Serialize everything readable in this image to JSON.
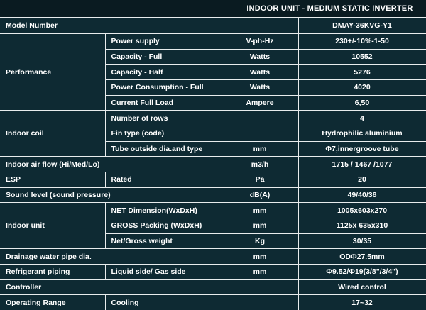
{
  "colors": {
    "background": "#0e2a33",
    "header_background": "#0a1b21",
    "border": "#e8eced",
    "text": "#ffffff"
  },
  "table": {
    "title": "INDOOR UNIT - MEDIUM STATIC INVERTER",
    "rows": {
      "model": {
        "label": "Model Number",
        "value": "DMAY-36KVG-Y1"
      },
      "performance": {
        "label": "Performance",
        "items": [
          {
            "spec": "Power supply",
            "unit": "V-ph-Hz",
            "value": "230+/-10%-1-50"
          },
          {
            "spec": "Capacity - Full",
            "unit": "Watts",
            "value": "10552"
          },
          {
            "spec": "Capacity - Half",
            "unit": "Watts",
            "value": "5276"
          },
          {
            "spec": "Power Consumption - Full",
            "unit": "Watts",
            "value": "4020"
          },
          {
            "spec": "Current Full Load",
            "unit": "Ampere",
            "value": "6,50"
          }
        ]
      },
      "indoor_coil": {
        "label": "Indoor coil",
        "items": [
          {
            "spec": "Number of rows",
            "unit": "",
            "value": "4"
          },
          {
            "spec": "Fin type (code)",
            "unit": "",
            "value": "Hydrophilic aluminium"
          },
          {
            "spec": "Tube outside dia.and type",
            "unit": "mm",
            "value": "Φ7,innergroove tube"
          }
        ]
      },
      "air_flow": {
        "label": "Indoor air flow (Hi/Med/Lo)",
        "unit": "m3/h",
        "value": "1715 / 1467 /1077"
      },
      "esp": {
        "label": "ESP",
        "spec": "Rated",
        "unit": "Pa",
        "value": "20"
      },
      "sound_level": {
        "label": "Sound level  (sound pressure)",
        "unit": "dB(A)",
        "value": "49/40/38"
      },
      "indoor_unit": {
        "label": "Indoor unit",
        "items": [
          {
            "spec": "NET Dimension(WxDxH)",
            "unit": "mm",
            "value": "1005x603x270"
          },
          {
            "spec": "GROSS Packing (WxDxH)",
            "unit": "mm",
            "value": "1125x 635x310"
          },
          {
            "spec": "Net/Gross weight",
            "unit": "Kg",
            "value": "30/35"
          }
        ]
      },
      "drainage": {
        "label": "Drainage water pipe dia.",
        "unit": "mm",
        "value": "ODΦ27.5mm"
      },
      "refrigerant": {
        "label": "Refrigerant piping",
        "spec": "Liquid side/ Gas side",
        "unit": "mm",
        "value": "Φ9.52/Φ19(3/8\"/3/4\")"
      },
      "controller": {
        "label": "Controller",
        "unit": "",
        "value": "Wired control"
      },
      "operating_range": {
        "label": "Operating Range",
        "spec": "Cooling",
        "unit": "",
        "value": "17~32"
      }
    }
  }
}
